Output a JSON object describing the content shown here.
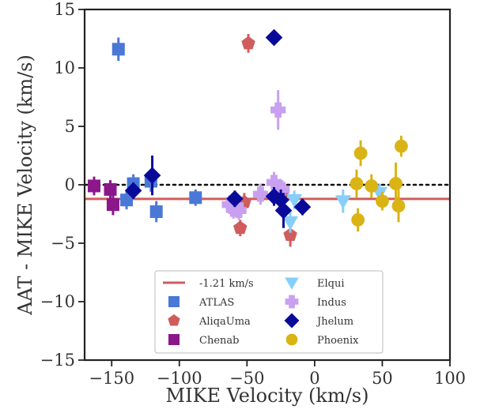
{
  "chart_data": {
    "type": "scatter",
    "title": "",
    "xlabel": "MIKE Velocity (km/s)",
    "ylabel": "AAT - MIKE Velocity (km/s)",
    "xlim": [
      -170,
      100
    ],
    "ylim": [
      -15,
      15
    ],
    "xticks": [
      -150,
      -100,
      -50,
      0,
      50,
      100
    ],
    "yticks": [
      -15,
      -10,
      -5,
      0,
      5,
      10,
      15
    ],
    "xtick_labels": [
      "−150",
      "−100",
      "−50",
      "0",
      "50",
      "100"
    ],
    "ytick_labels": [
      "−15",
      "−10",
      "−5",
      "0",
      "5",
      "10",
      "15"
    ],
    "grid": false,
    "legend_position": "bottom-center",
    "reference_lines": [
      {
        "name": "-1.21 km/s",
        "y": -1.21,
        "color": "#d05c5c",
        "style": "solid"
      },
      {
        "y": 0,
        "color": "#111111",
        "style": "dotted"
      }
    ],
    "series": [
      {
        "name": "ATLAS",
        "marker": "square",
        "color": "#4a78d6",
        "points": [
          {
            "x": -145,
            "y": 11.6,
            "err": 1.0
          },
          {
            "x": -139,
            "y": -1.3,
            "err": 0.8
          },
          {
            "x": -134,
            "y": 0.1,
            "err": 0.8
          },
          {
            "x": -121,
            "y": 0.3,
            "err": 0.9
          },
          {
            "x": -117,
            "y": -2.3,
            "err": 0.9
          },
          {
            "x": -88,
            "y": -1.1,
            "err": 0.7
          }
        ]
      },
      {
        "name": "AliqaUma",
        "marker": "pentagon",
        "color": "#d05c5c",
        "points": [
          {
            "x": -55,
            "y": -3.7,
            "err": 0.7
          },
          {
            "x": -52,
            "y": -1.5,
            "err": 0.8
          },
          {
            "x": -49,
            "y": 12.1,
            "err": 0.8
          },
          {
            "x": -24,
            "y": -0.8,
            "err": 0.8
          },
          {
            "x": -18,
            "y": -4.3,
            "err": 1.0
          }
        ]
      },
      {
        "name": "Chenab",
        "marker": "square",
        "color": "#8b178b",
        "points": [
          {
            "x": -163,
            "y": -0.1,
            "err": 0.8
          },
          {
            "x": -151,
            "y": -0.4,
            "err": 0.8
          },
          {
            "x": -149,
            "y": -1.7,
            "err": 0.9
          }
        ]
      },
      {
        "name": "Elqui",
        "marker": "triangle-down",
        "color": "#87cefa",
        "points": [
          {
            "x": -18,
            "y": -3.2,
            "err": 0.9
          },
          {
            "x": -15,
            "y": -1.3,
            "err": 0.8
          },
          {
            "x": 21,
            "y": -1.4,
            "err": 1.0
          },
          {
            "x": 48,
            "y": -0.7,
            "err": 0.8
          }
        ]
      },
      {
        "name": "Indus",
        "marker": "plus",
        "color": "#c9a0f0",
        "points": [
          {
            "x": -63,
            "y": -1.7,
            "err": 0.8
          },
          {
            "x": -60,
            "y": -2.1,
            "err": 0.8
          },
          {
            "x": -58,
            "y": -1.8,
            "err": 0.8
          },
          {
            "x": -56,
            "y": -2.2,
            "err": 0.8
          },
          {
            "x": -40,
            "y": -0.8,
            "err": 0.9
          },
          {
            "x": -30,
            "y": 0.2,
            "err": 0.9
          },
          {
            "x": -27,
            "y": 6.4,
            "err": 1.7
          },
          {
            "x": -24,
            "y": -0.4,
            "err": 0.8
          }
        ]
      },
      {
        "name": "Jhelum",
        "marker": "diamond",
        "color": "#0a0a9a",
        "points": [
          {
            "x": -134,
            "y": -0.5,
            "err": 0.7
          },
          {
            "x": -120,
            "y": 0.8,
            "err": 1.7
          },
          {
            "x": -59,
            "y": -1.2,
            "err": 0.7
          },
          {
            "x": -30,
            "y": 12.6,
            "err": 0.6
          },
          {
            "x": -30,
            "y": -1.0,
            "err": 0.8
          },
          {
            "x": -25,
            "y": -1.3,
            "err": 0.9
          },
          {
            "x": -23,
            "y": -2.2,
            "err": 1.5
          },
          {
            "x": -9,
            "y": -1.9,
            "err": 0.7
          }
        ]
      },
      {
        "name": "Phoenix",
        "marker": "circle",
        "color": "#dab315",
        "points": [
          {
            "x": 31,
            "y": 0.1,
            "err": 1.2
          },
          {
            "x": 32,
            "y": -3.0,
            "err": 1.0
          },
          {
            "x": 34,
            "y": 2.7,
            "err": 1.1
          },
          {
            "x": 42,
            "y": -0.1,
            "err": 1.0
          },
          {
            "x": 50,
            "y": -1.4,
            "err": 0.8
          },
          {
            "x": 60,
            "y": 0.1,
            "err": 1.8
          },
          {
            "x": 62,
            "y": -1.8,
            "err": 1.4
          },
          {
            "x": 64,
            "y": 3.3,
            "err": 0.9
          }
        ]
      }
    ],
    "legend": [
      {
        "label": "-1.21 km/s",
        "kind": "line",
        "color": "#d05c5c"
      },
      {
        "label": "Elqui",
        "kind": "marker",
        "marker": "triangle-down",
        "color": "#87cefa"
      },
      {
        "label": "ATLAS",
        "kind": "marker",
        "marker": "square",
        "color": "#4a78d6"
      },
      {
        "label": "Indus",
        "kind": "marker",
        "marker": "plus",
        "color": "#c9a0f0"
      },
      {
        "label": "AliqaUma",
        "kind": "marker",
        "marker": "pentagon",
        "color": "#d05c5c"
      },
      {
        "label": "Jhelum",
        "kind": "marker",
        "marker": "diamond",
        "color": "#0a0a9a"
      },
      {
        "label": "Chenab",
        "kind": "marker",
        "marker": "square",
        "color": "#8b178b"
      },
      {
        "label": "Phoenix",
        "kind": "marker",
        "marker": "circle",
        "color": "#dab315"
      }
    ]
  }
}
